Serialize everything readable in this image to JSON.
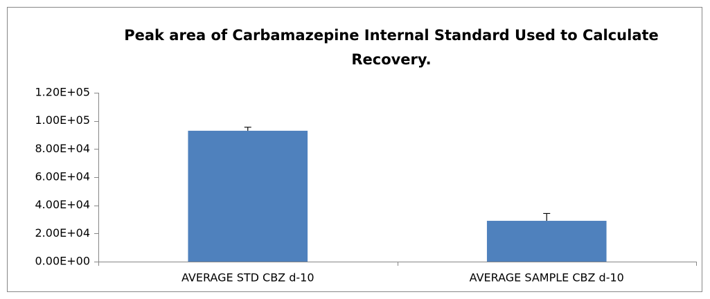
{
  "chart_data": {
    "type": "bar",
    "title": "Peak area of Carbamazepine Internal Standard Used to Calculate Recovery.",
    "categories": [
      "AVERAGE STD CBZ d-10",
      "AVERAGE SAMPLE CBZ d-10"
    ],
    "values": [
      93000,
      29000
    ],
    "errors": [
      2500,
      5200
    ],
    "color": "#4f81bd",
    "ylim": [
      0,
      120000
    ],
    "yticks": [
      {
        "value": 0,
        "label": "0.00E+00"
      },
      {
        "value": 20000,
        "label": "2.00E+04"
      },
      {
        "value": 40000,
        "label": "4.00E+04"
      },
      {
        "value": 60000,
        "label": "6.00E+04"
      },
      {
        "value": 80000,
        "label": "8.00E+04"
      },
      {
        "value": 100000,
        "label": "1.00E+05"
      },
      {
        "value": 120000,
        "label": "1.20E+05"
      }
    ],
    "grid": false
  }
}
